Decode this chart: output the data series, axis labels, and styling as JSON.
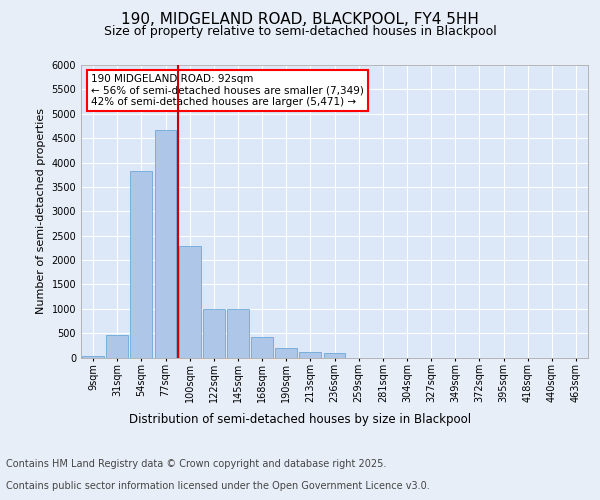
{
  "title_line1": "190, MIDGELAND ROAD, BLACKPOOL, FY4 5HH",
  "title_line2": "Size of property relative to semi-detached houses in Blackpool",
  "xlabel": "Distribution of semi-detached houses by size in Blackpool",
  "ylabel": "Number of semi-detached properties",
  "categories": [
    "9sqm",
    "31sqm",
    "54sqm",
    "77sqm",
    "100sqm",
    "122sqm",
    "145sqm",
    "168sqm",
    "190sqm",
    "213sqm",
    "236sqm",
    "259sqm",
    "281sqm",
    "304sqm",
    "327sqm",
    "349sqm",
    "372sqm",
    "395sqm",
    "418sqm",
    "440sqm",
    "463sqm"
  ],
  "values": [
    30,
    470,
    3820,
    4660,
    2280,
    1000,
    1000,
    420,
    200,
    110,
    100,
    0,
    0,
    0,
    0,
    0,
    0,
    0,
    0,
    0,
    0
  ],
  "bar_color": "#aec6e8",
  "bar_edge_color": "#5a9fd4",
  "vline_color": "#cc0000",
  "vline_position": 3.5,
  "annotation_box_text": "190 MIDGELAND ROAD: 92sqm\n← 56% of semi-detached houses are smaller (7,349)\n42% of semi-detached houses are larger (5,471) →",
  "ylim": [
    0,
    6000
  ],
  "yticks": [
    0,
    500,
    1000,
    1500,
    2000,
    2500,
    3000,
    3500,
    4000,
    4500,
    5000,
    5500,
    6000
  ],
  "background_color": "#e8eef8",
  "plot_bg_color": "#dce8f8",
  "grid_color": "#ffffff",
  "footer_line1": "Contains HM Land Registry data © Crown copyright and database right 2025.",
  "footer_line2": "Contains public sector information licensed under the Open Government Licence v3.0.",
  "title_fontsize": 11,
  "subtitle_fontsize": 9,
  "ylabel_fontsize": 8,
  "xlabel_fontsize": 8.5,
  "tick_fontsize": 7,
  "annotation_fontsize": 7.5,
  "footer_fontsize": 7
}
